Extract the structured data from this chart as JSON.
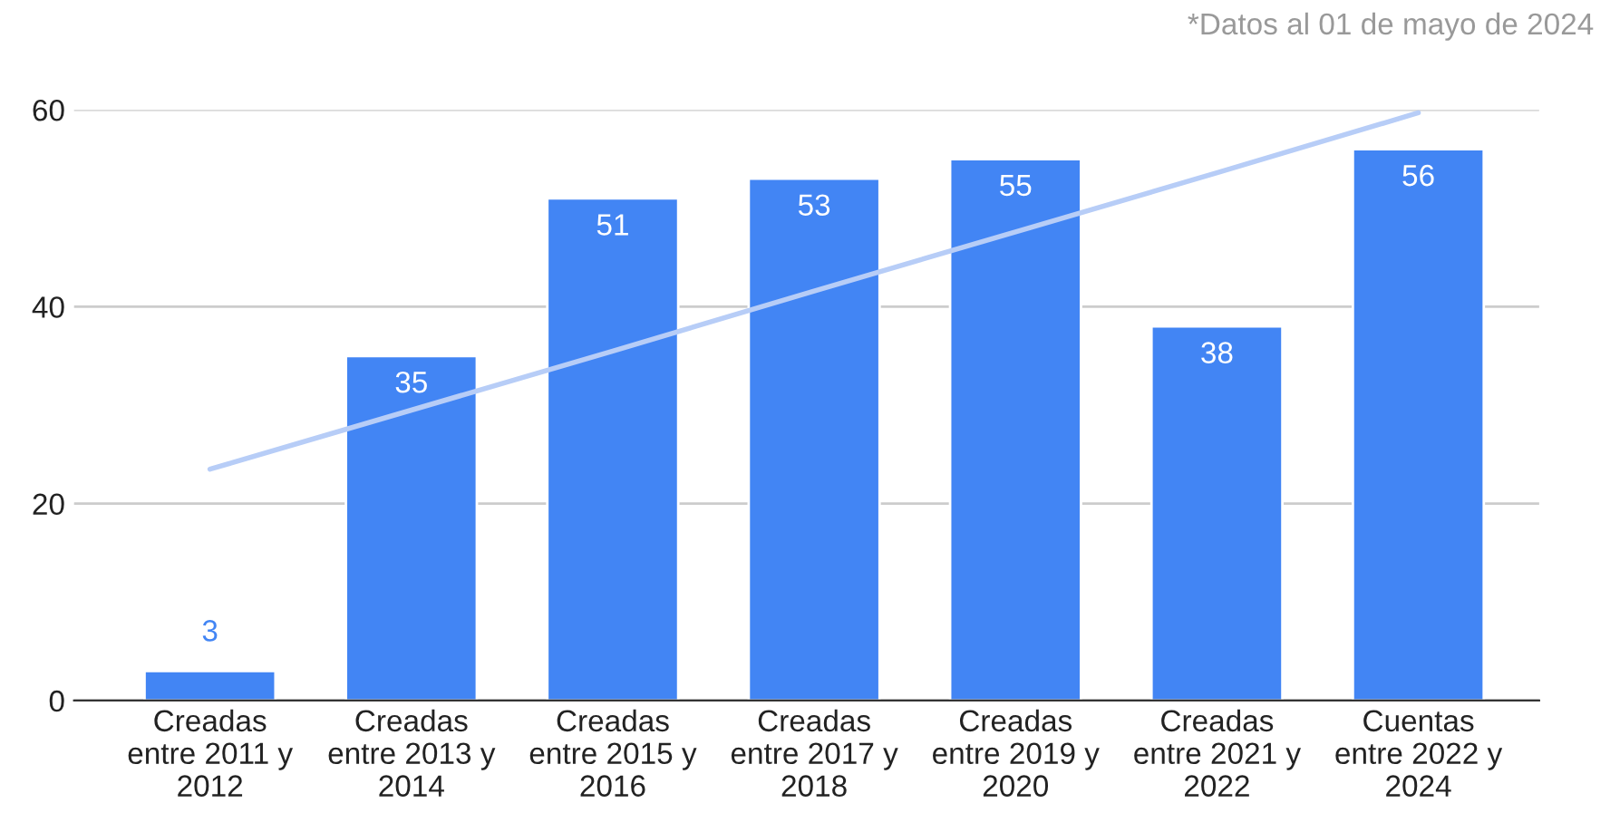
{
  "chart_data": {
    "type": "bar",
    "categories": [
      "Creadas entre 2011 y 2012",
      "Creadas entre 2013 y 2014",
      "Creadas entre 2015 y 2016",
      "Creadas entre 2017 y 2018",
      "Creadas entre 2019 y 2020",
      "Creadas entre 2021 y 2022",
      "Cuentas entre 2022 y 2024"
    ],
    "series": [
      {
        "color": "#4285f4",
        "values": [
          3,
          35,
          51,
          53,
          55,
          38,
          56
        ],
        "value_labels": [
          "3",
          "35",
          "51",
          "53",
          "55",
          "38",
          "56"
        ]
      },
      {
        "type": "line",
        "color": "#b7cdf7",
        "values": [
          23.5,
          29.5,
          35.5,
          41.6,
          47.6,
          53.6,
          59.7
        ]
      }
    ],
    "ylim": [
      0,
      60
    ],
    "yticks": [
      0,
      20,
      40,
      60
    ],
    "grid": "y",
    "legend": false,
    "annotations": [
      "*Datos al 01 de mayo de 2024"
    ]
  }
}
